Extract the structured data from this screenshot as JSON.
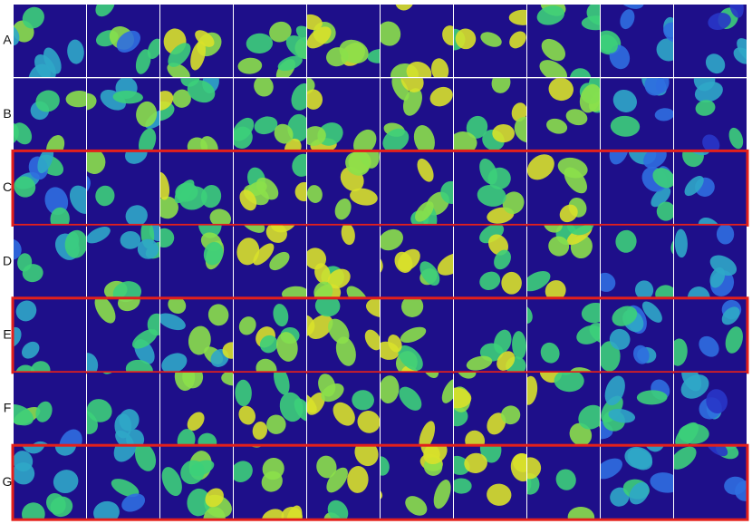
{
  "rows": [
    {
      "label": "A",
      "highlighted": false
    },
    {
      "label": "B",
      "highlighted": false
    },
    {
      "label": "C",
      "highlighted": true
    },
    {
      "label": "D",
      "highlighted": false
    },
    {
      "label": "E",
      "highlighted": true
    },
    {
      "label": "F",
      "highlighted": false
    },
    {
      "label": "G",
      "highlighted": true
    }
  ]
}
